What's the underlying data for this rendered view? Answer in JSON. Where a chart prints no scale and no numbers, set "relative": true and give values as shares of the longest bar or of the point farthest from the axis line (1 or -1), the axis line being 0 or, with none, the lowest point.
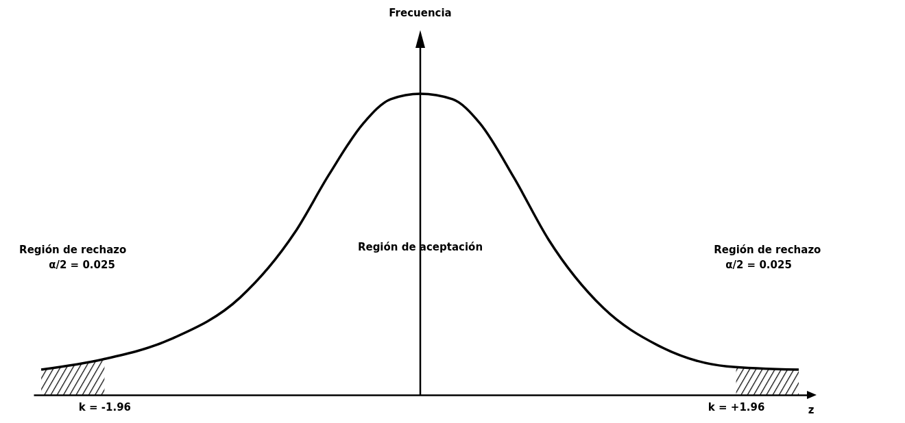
{
  "chart_data": {
    "type": "line",
    "relative": true,
    "xlabel": "z",
    "x": [
      -2.353,
      -1.97,
      -1.545,
      -1.119,
      -0.779,
      -0.566,
      -0.353,
      -0.183,
      0,
      0.2,
      0.37,
      0.583,
      0.796,
      1.136,
      1.477,
      1.902,
      2.349
    ],
    "series": [
      {
        "color": "#000000",
        "values": [
          0.084,
          0.118,
          0.186,
          0.323,
          0.539,
          0.732,
          0.902,
          0.982,
          1,
          0.982,
          0.902,
          0.72,
          0.516,
          0.289,
          0.164,
          0.095,
          0.084
        ]
      }
    ],
    "xlim": [
      -2.4,
      2.4
    ],
    "xticks": [
      {
        "value": -1.96,
        "label": "k = -1.96"
      },
      {
        "value": 1.96,
        "label": "k = +1.96"
      }
    ],
    "marker": "none",
    "bands": [
      {
        "axis": "x",
        "from": -2.353,
        "to": -1.96,
        "label": "Región de rechazo"
      },
      {
        "axis": "x",
        "from": 1.96,
        "to": 2.349,
        "label": "Región de rechazo"
      }
    ],
    "annotations": [
      "Frecuencia",
      "α/2 = 0.025",
      "α/2 = 0.025",
      "Región de aceptación"
    ]
  }
}
